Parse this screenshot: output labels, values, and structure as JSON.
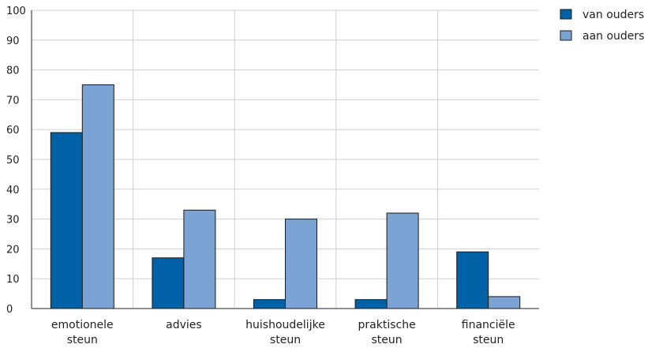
{
  "chart_data": {
    "type": "bar",
    "categories": [
      [
        "emotionele",
        "steun"
      ],
      [
        "advies"
      ],
      [
        "huishoudelijke",
        "steun"
      ],
      [
        "praktische",
        "steun"
      ],
      [
        "financiële",
        "steun"
      ]
    ],
    "series": [
      {
        "name": "van ouders",
        "color": "#0061a6",
        "values": [
          59,
          17,
          3,
          3,
          19
        ]
      },
      {
        "name": "aan ouders",
        "color": "#7ba3d3",
        "values": [
          75,
          33,
          30,
          32,
          4
        ]
      }
    ],
    "ylim": [
      0,
      100
    ],
    "yticks": [
      0,
      10,
      20,
      30,
      40,
      50,
      60,
      70,
      80,
      90,
      100
    ],
    "grid": true,
    "legend_position": "top-right",
    "gridline_color": "#d0d0d0",
    "bar_outline_color": "#1a1a1a"
  }
}
